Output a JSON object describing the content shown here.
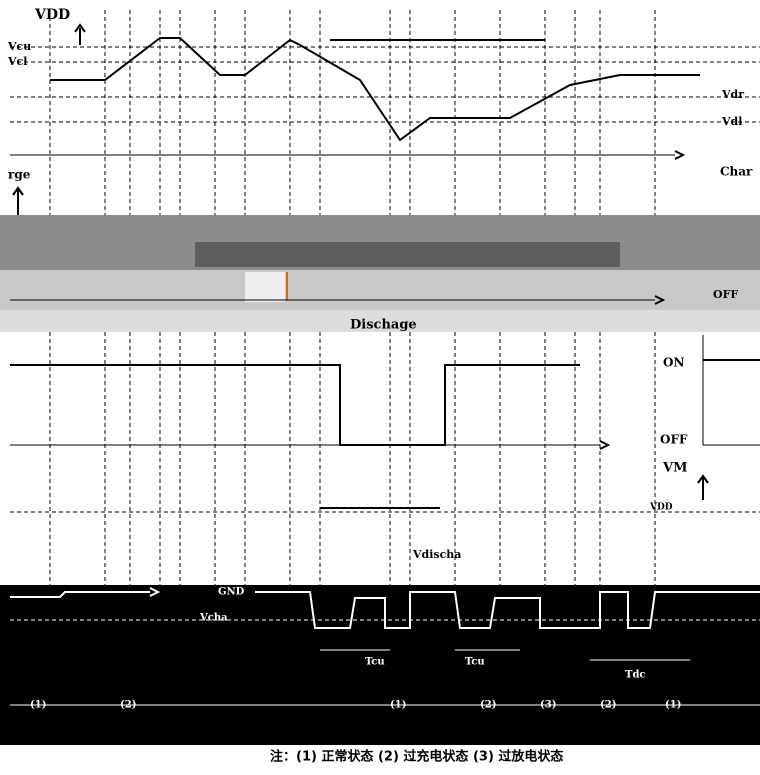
{
  "top_panel": {
    "vdd": "VDD",
    "vcu": "Vcu",
    "vcl": "Vcl",
    "vdr": "Vdr",
    "vdl": "Vdl"
  },
  "charge_panel": {
    "left_label": "rge",
    "right_label": "Char",
    "off": "OFF",
    "discharge": "Dischage"
  },
  "switch_panel": {
    "on": "ON",
    "off": "OFF",
    "vm": "VM"
  },
  "vm_panel": {
    "vdd": "VDD",
    "vdischa": "Vdischa",
    "gnd": "GND",
    "vcha": "Vcha",
    "t1": "Tcu",
    "t2": "Tcu",
    "t3": "Tdc"
  },
  "states": [
    "(1)",
    "(2)",
    "(1)",
    "(2)",
    "(3)",
    "(2)",
    "(1)"
  ],
  "note": "注：(1) 正常状态 (2) 过充电状态 (3) 过放电状态"
}
